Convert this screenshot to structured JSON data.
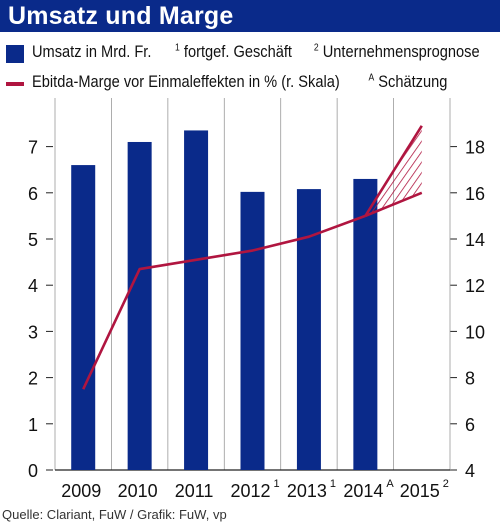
{
  "title": "Umsatz und Marge",
  "legend": {
    "bar_label": "Umsatz in Mrd. Fr.",
    "note1_mark": "1",
    "note1_text": "fortgef. Geschäft",
    "note2_mark": "2",
    "note2_text": "Unternehmensprognose",
    "line_label": "Ebitda-Marge vor Einmaleffekten in % (r. Skala)",
    "noteA_mark": "A",
    "noteA_text": "Schätzung"
  },
  "source": "Quelle: Clariant, FuW / Grafik: FuW, vp",
  "colors": {
    "bar": "#0a2a8a",
    "line": "#b01540",
    "title_bg": "#0a2a8a"
  },
  "chart_data": {
    "type": "bar",
    "categories": [
      "2009",
      "2010",
      "2011",
      "2012",
      "2013",
      "2014",
      "2015"
    ],
    "category_superscripts": [
      "",
      "",
      "",
      "1",
      "1",
      "A",
      "2"
    ],
    "series": [
      {
        "axis": "left",
        "type": "bar",
        "values": [
          6.6,
          7.1,
          7.35,
          6.02,
          6.08,
          6.3,
          null
        ]
      },
      {
        "axis": "right",
        "type": "line",
        "values": [
          7.5,
          12.7,
          13.1,
          13.5,
          14.1,
          15.0,
          null
        ],
        "forecast_2015_range": [
          16.0,
          18.9
        ]
      }
    ],
    "yticks_left": [
      0,
      1,
      2,
      3,
      4,
      5,
      6,
      7
    ],
    "yticks_right": [
      4,
      6,
      8,
      10,
      12,
      14,
      16,
      18
    ],
    "ylim_left": [
      0,
      7.8
    ],
    "ylim_right": [
      4,
      19.6
    ],
    "grid": "vertical separators only",
    "legend_position": "top"
  }
}
